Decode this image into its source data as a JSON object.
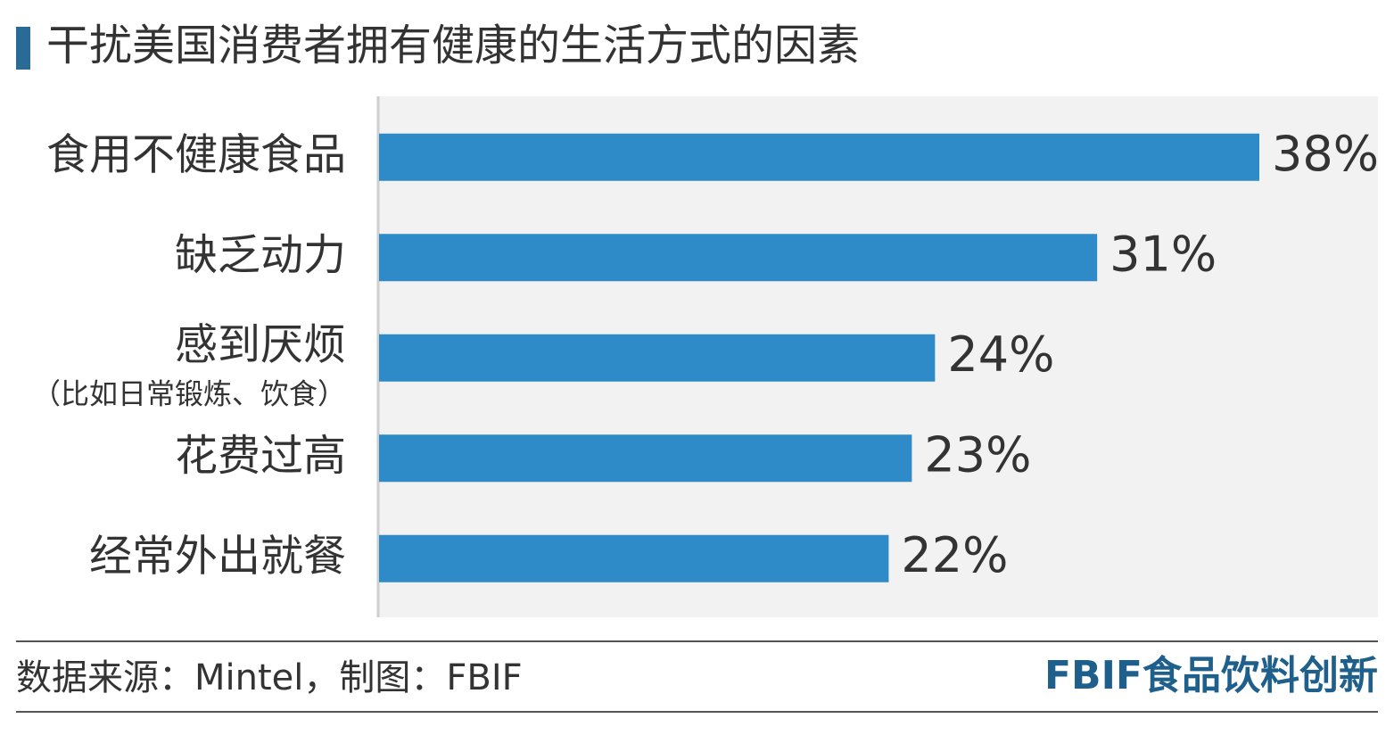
{
  "chart_data": {
    "type": "bar",
    "orientation": "horizontal",
    "title": "干扰美国消费者拥有健康的生活方式的因素",
    "categories": [
      "食用不健康食品",
      "缺乏动力",
      "感到厌烦",
      "花费过高",
      "经常外出就餐"
    ],
    "category_notes": [
      null,
      null,
      "（比如日常锻炼、饮食）",
      null,
      null
    ],
    "values": [
      38,
      31,
      24,
      23,
      22
    ],
    "value_labels": [
      "38%",
      "31%",
      "24%",
      "23%",
      "22%"
    ],
    "color": "#2e8bc7",
    "source": "数据来源：Mintel，制图：FBIF",
    "brand": "FBIF食品饮料创新"
  }
}
